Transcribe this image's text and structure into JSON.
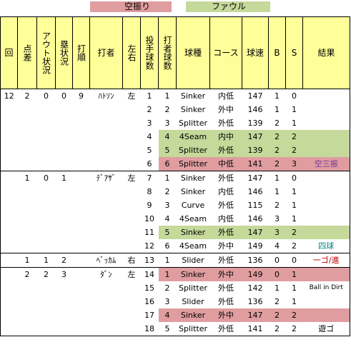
{
  "legend": {
    "items": [
      {
        "label": "空振り",
        "color": "#e09da0"
      },
      {
        "label": "ファウル",
        "color": "#c5d99a"
      }
    ]
  },
  "headers": {
    "inning": "回",
    "score_diff": "点差",
    "outs": "アウト状況",
    "runners": "塁状況",
    "order": "打順",
    "batter": "打者",
    "hand": "左右",
    "pitcher_count": "投手球数",
    "batter_count": "打者球数",
    "pitch_type": "球種",
    "course": "コース",
    "speed": "球速",
    "balls": "B",
    "strikes": "S",
    "result": "結果"
  },
  "colors": {
    "header_bg": "#ffff99",
    "swing_miss": "#e09da0",
    "foul": "#c5d99a",
    "purple_text": "#7030a0",
    "teal_text": "#008080",
    "red_text": "#c00000"
  },
  "rows": [
    {
      "inning": "12",
      "diff": "2",
      "outs": "0",
      "runners": "0",
      "order": "9",
      "batter": "ﾊﾄｿﾝ",
      "hand": "左",
      "pc": "1",
      "bc": "1",
      "type": "Sinker",
      "course": "内低",
      "speed": "147",
      "b": "1",
      "s": "0",
      "result": "",
      "hl": ""
    },
    {
      "pc": "2",
      "bc": "2",
      "type": "Sinker",
      "course": "外中",
      "speed": "146",
      "b": "1",
      "s": "1",
      "result": "",
      "hl": ""
    },
    {
      "pc": "3",
      "bc": "3",
      "type": "Splitter",
      "course": "外低",
      "speed": "139",
      "b": "2",
      "s": "1",
      "result": "",
      "hl": ""
    },
    {
      "pc": "4",
      "bc": "4",
      "type": "4Seam",
      "course": "内中",
      "speed": "147",
      "b": "2",
      "s": "2",
      "result": "",
      "hl": "foul"
    },
    {
      "pc": "5",
      "bc": "5",
      "type": "Splitter",
      "course": "外低",
      "speed": "139",
      "b": "2",
      "s": "2",
      "result": "",
      "hl": "foul"
    },
    {
      "pc": "6",
      "bc": "6",
      "type": "Splitter",
      "course": "中低",
      "speed": "141",
      "b": "2",
      "s": "3",
      "result": "空三振",
      "hl": "swing",
      "rcolor": "#7030a0"
    },
    {
      "inning": "",
      "diff": "1",
      "outs": "0",
      "runners": "1",
      "order": "",
      "batter": "ﾃﾞｱｻﾞ",
      "hand": "左",
      "pc": "7",
      "bc": "1",
      "type": "Sinker",
      "course": "外低",
      "speed": "147",
      "b": "1",
      "s": "0",
      "result": "",
      "hl": ""
    },
    {
      "pc": "8",
      "bc": "2",
      "type": "Sinker",
      "course": "内低",
      "speed": "146",
      "b": "1",
      "s": "1",
      "result": "",
      "hl": ""
    },
    {
      "pc": "9",
      "bc": "3",
      "type": "Curve",
      "course": "外低",
      "speed": "115",
      "b": "2",
      "s": "1",
      "result": "",
      "hl": ""
    },
    {
      "pc": "10",
      "bc": "4",
      "type": "4Seam",
      "course": "内低",
      "speed": "146",
      "b": "3",
      "s": "1",
      "result": "",
      "hl": ""
    },
    {
      "pc": "11",
      "bc": "5",
      "type": "Sinker",
      "course": "外低",
      "speed": "147",
      "b": "3",
      "s": "2",
      "result": "",
      "hl": "foul"
    },
    {
      "pc": "12",
      "bc": "6",
      "type": "4Seam",
      "course": "外中",
      "speed": "149",
      "b": "4",
      "s": "2",
      "result": "四球",
      "hl": "",
      "rcolor": "#008080"
    },
    {
      "inning": "",
      "diff": "1",
      "outs": "1",
      "runners": "2",
      "order": "",
      "batter": "ﾍﾞｯｶﾑ",
      "hand": "右",
      "pc": "13",
      "bc": "1",
      "type": "Slider",
      "course": "外低",
      "speed": "136",
      "b": "0",
      "s": "0",
      "result": "一ゴ/進",
      "hl": "",
      "rcolor": "#c00000"
    },
    {
      "inning": "",
      "diff": "2",
      "outs": "2",
      "runners": "3",
      "order": "",
      "batter": "ﾀﾞﾝ",
      "hand": "左",
      "pc": "14",
      "bc": "1",
      "type": "Sinker",
      "course": "外中",
      "speed": "149",
      "b": "0",
      "s": "1",
      "result": "",
      "hl": "swing"
    },
    {
      "pc": "15",
      "bc": "2",
      "type": "Splitter",
      "course": "外低",
      "speed": "142",
      "b": "1",
      "s": "1",
      "result": "Ball in Dirt",
      "hl": "",
      "small": true
    },
    {
      "pc": "16",
      "bc": "3",
      "type": "Slider",
      "course": "外低",
      "speed": "136",
      "b": "2",
      "s": "1",
      "result": "",
      "hl": ""
    },
    {
      "pc": "17",
      "bc": "4",
      "type": "Sinker",
      "course": "外中",
      "speed": "147",
      "b": "2",
      "s": "2",
      "result": "",
      "hl": "swing"
    },
    {
      "pc": "18",
      "bc": "5",
      "type": "Splitter",
      "course": "外低",
      "speed": "141",
      "b": "2",
      "s": "2",
      "result": "遊ゴ",
      "hl": ""
    }
  ]
}
